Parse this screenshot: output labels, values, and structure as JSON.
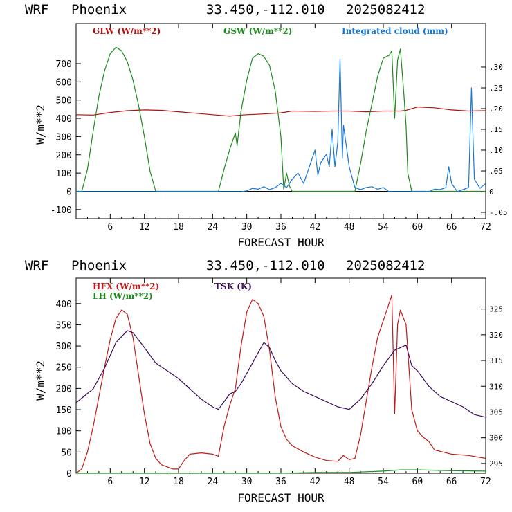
{
  "chart_data": [
    {
      "type": "line",
      "header": {
        "model": "WRF",
        "location": "Phoenix",
        "coords": "33.450,-112.010",
        "init": "2025082412"
      },
      "xlabel": "FORECAST HOUR",
      "ylabel": "W/m**2",
      "xlim": [
        0,
        72
      ],
      "ylim": [
        -150,
        920
      ],
      "y2lim": [
        -0.065,
        0.405
      ],
      "xticks": [
        "6",
        "12",
        "18",
        "24",
        "30",
        "36",
        "42",
        "48",
        "54",
        "60",
        "66",
        "72"
      ],
      "yticks": [
        "-100",
        "0",
        "100",
        "200",
        "300",
        "400",
        "500",
        "600",
        "700"
      ],
      "y2ticks": [
        "-.05",
        "0",
        ".05",
        ".10",
        ".15",
        ".20",
        ".25",
        ".30"
      ],
      "zero_line": true,
      "series": [
        {
          "name": "GLW (W/m**2)",
          "color": "#b01010",
          "axis": "left",
          "points": [
            [
              0,
              420
            ],
            [
              3,
              418
            ],
            [
              6,
              432
            ],
            [
              9,
              442
            ],
            [
              12,
              446
            ],
            [
              15,
              444
            ],
            [
              18,
              436
            ],
            [
              21,
              428
            ],
            [
              24,
              420
            ],
            [
              27,
              412
            ],
            [
              29,
              418
            ],
            [
              30,
              420
            ],
            [
              33,
              424
            ],
            [
              36,
              430
            ],
            [
              38,
              440
            ],
            [
              42,
              438
            ],
            [
              45,
              440
            ],
            [
              48,
              440
            ],
            [
              51,
              436
            ],
            [
              54,
              440
            ],
            [
              57,
              440
            ],
            [
              58,
              444
            ],
            [
              60,
              462
            ],
            [
              63,
              458
            ],
            [
              66,
              446
            ],
            [
              69,
              440
            ],
            [
              72,
              442
            ]
          ]
        },
        {
          "name": "GSW (W/m**2)",
          "color": "#1e8a1e",
          "axis": "left",
          "points": [
            [
              0,
              0
            ],
            [
              1,
              0
            ],
            [
              2,
              120
            ],
            [
              3,
              330
            ],
            [
              4,
              520
            ],
            [
              5,
              660
            ],
            [
              6,
              755
            ],
            [
              7,
              790
            ],
            [
              8,
              770
            ],
            [
              9,
              710
            ],
            [
              10,
              610
            ],
            [
              11,
              470
            ],
            [
              12,
              300
            ],
            [
              13,
              110
            ],
            [
              14,
              0
            ],
            [
              25,
              0
            ],
            [
              26,
              120
            ],
            [
              27,
              230
            ],
            [
              28,
              320
            ],
            [
              28.3,
              250
            ],
            [
              29,
              440
            ],
            [
              30,
              610
            ],
            [
              31,
              730
            ],
            [
              32,
              755
            ],
            [
              33,
              740
            ],
            [
              34,
              690
            ],
            [
              35,
              550
            ],
            [
              36,
              300
            ],
            [
              36.5,
              10
            ],
            [
              37,
              100
            ],
            [
              37.5,
              30
            ],
            [
              38,
              0
            ],
            [
              49,
              0
            ],
            [
              50,
              150
            ],
            [
              51,
              330
            ],
            [
              52,
              480
            ],
            [
              53,
              630
            ],
            [
              54,
              730
            ],
            [
              55,
              745
            ],
            [
              55.5,
              770
            ],
            [
              56,
              400
            ],
            [
              56.5,
              720
            ],
            [
              57,
              780
            ],
            [
              57.6,
              540
            ],
            [
              58,
              360
            ],
            [
              58.3,
              100
            ],
            [
              59,
              0
            ],
            [
              72,
              0
            ]
          ]
        },
        {
          "name": "Integrated cloud (mm)",
          "color": "#1878d8",
          "axis": "right",
          "points": [
            [
              0,
              0
            ],
            [
              29,
              0
            ],
            [
              30,
              0.002
            ],
            [
              31,
              0.008
            ],
            [
              32,
              0.006
            ],
            [
              33,
              0.012
            ],
            [
              34,
              0.005
            ],
            [
              35,
              0.01
            ],
            [
              36,
              0.02
            ],
            [
              37,
              0.01
            ],
            [
              38,
              0.03
            ],
            [
              39,
              0.045
            ],
            [
              40,
              0.02
            ],
            [
              41,
              0.06
            ],
            [
              42,
              0.1
            ],
            [
              42.5,
              0.04
            ],
            [
              43,
              0.07
            ],
            [
              44,
              0.09
            ],
            [
              44.5,
              0.06
            ],
            [
              45,
              0.15
            ],
            [
              45.5,
              0.06
            ],
            [
              46,
              0.12
            ],
            [
              46.4,
              0.32
            ],
            [
              46.8,
              0.08
            ],
            [
              47,
              0.16
            ],
            [
              48,
              0.06
            ],
            [
              49,
              0.01
            ],
            [
              50,
              0.005
            ],
            [
              51,
              0.01
            ],
            [
              52,
              0.012
            ],
            [
              53,
              0.006
            ],
            [
              54,
              0.01
            ],
            [
              55,
              0
            ],
            [
              62,
              0
            ],
            [
              63,
              0.006
            ],
            [
              64,
              0.005
            ],
            [
              65,
              0.01
            ],
            [
              65.5,
              0.06
            ],
            [
              66,
              0.02
            ],
            [
              67,
              0.0
            ],
            [
              68,
              0.005
            ],
            [
              69,
              0.01
            ],
            [
              69.5,
              0.25
            ],
            [
              70,
              0.03
            ],
            [
              71,
              0.008
            ],
            [
              72,
              0.02
            ]
          ]
        }
      ]
    },
    {
      "type": "line",
      "header": {
        "model": "WRF",
        "location": "Phoenix",
        "coords": "33.450,-112.010",
        "init": "2025082412"
      },
      "xlabel": "FORECAST HOUR",
      "ylabel": "W/m**2",
      "xlim": [
        0,
        72
      ],
      "ylim": [
        0,
        460
      ],
      "y2lim": [
        293.1,
        331
      ],
      "xticks": [
        "6",
        "12",
        "18",
        "24",
        "30",
        "36",
        "42",
        "48",
        "54",
        "60",
        "66",
        "72"
      ],
      "yticks": [
        "0",
        "50",
        "100",
        "150",
        "200",
        "250",
        "300",
        "350",
        "400"
      ],
      "y2ticks": [
        "295",
        "300",
        "305",
        "310",
        "315",
        "320",
        "325"
      ],
      "zero_line": false,
      "series": [
        {
          "name": "HFX (W/m**2)",
          "color": "#c01a1a",
          "axis": "left",
          "points": [
            [
              0,
              0
            ],
            [
              1,
              10
            ],
            [
              2,
              50
            ],
            [
              3,
              110
            ],
            [
              4,
              180
            ],
            [
              5,
              250
            ],
            [
              6,
              315
            ],
            [
              7,
              365
            ],
            [
              8,
              385
            ],
            [
              9,
              375
            ],
            [
              10,
              320
            ],
            [
              11,
              230
            ],
            [
              12,
              140
            ],
            [
              13,
              70
            ],
            [
              14,
              35
            ],
            [
              15,
              20
            ],
            [
              17,
              10
            ],
            [
              18,
              10
            ],
            [
              19,
              30
            ],
            [
              20,
              45
            ],
            [
              22,
              48
            ],
            [
              24,
              45
            ],
            [
              25,
              40
            ],
            [
              26,
              110
            ],
            [
              27,
              160
            ],
            [
              28,
              200
            ],
            [
              29,
              300
            ],
            [
              30,
              380
            ],
            [
              31,
              410
            ],
            [
              32,
              400
            ],
            [
              33,
              370
            ],
            [
              34,
              290
            ],
            [
              35,
              180
            ],
            [
              36,
              110
            ],
            [
              37,
              80
            ],
            [
              38,
              65
            ],
            [
              40,
              50
            ],
            [
              42,
              38
            ],
            [
              44,
              30
            ],
            [
              46,
              28
            ],
            [
              47,
              42
            ],
            [
              48,
              32
            ],
            [
              49,
              35
            ],
            [
              50,
              90
            ],
            [
              51,
              170
            ],
            [
              52,
              250
            ],
            [
              53,
              320
            ],
            [
              54,
              360
            ],
            [
              55,
              400
            ],
            [
              55.5,
              420
            ],
            [
              56,
              140
            ],
            [
              56.5,
              350
            ],
            [
              57,
              385
            ],
            [
              58,
              350
            ],
            [
              59,
              150
            ],
            [
              60,
              100
            ],
            [
              61,
              85
            ],
            [
              62,
              75
            ],
            [
              63,
              55
            ],
            [
              66,
              45
            ],
            [
              69,
              42
            ],
            [
              72,
              35
            ]
          ]
        },
        {
          "name": "LH  (W/m**2)",
          "color": "#1e8a1e",
          "axis": "left",
          "points": [
            [
              0,
              0
            ],
            [
              36,
              0
            ],
            [
              42,
              2
            ],
            [
              48,
              2
            ],
            [
              54,
              5
            ],
            [
              57,
              8
            ],
            [
              60,
              8
            ],
            [
              66,
              6
            ],
            [
              72,
              5
            ]
          ]
        },
        {
          "name": "TSK (K)",
          "color": "#3a0a5a",
          "axis": "right",
          "points": [
            [
              0,
              306.8
            ],
            [
              3,
              309.5
            ],
            [
              5,
              313.5
            ],
            [
              7,
              318.5
            ],
            [
              9,
              320.8
            ],
            [
              10,
              320.4
            ],
            [
              12,
              317.5
            ],
            [
              14,
              314.5
            ],
            [
              16,
              313
            ],
            [
              18,
              311.5
            ],
            [
              20,
              309.5
            ],
            [
              22,
              307.5
            ],
            [
              24,
              306
            ],
            [
              25,
              305.5
            ],
            [
              26,
              307
            ],
            [
              27,
              308.5
            ],
            [
              28,
              309
            ],
            [
              29,
              310.5
            ],
            [
              30,
              312.5
            ],
            [
              32,
              316.5
            ],
            [
              33,
              318.5
            ],
            [
              34,
              317.5
            ],
            [
              35,
              315
            ],
            [
              36,
              313
            ],
            [
              38,
              310.5
            ],
            [
              40,
              309
            ],
            [
              42,
              308
            ],
            [
              44,
              307
            ],
            [
              46,
              306
            ],
            [
              48,
              305.5
            ],
            [
              50,
              307.5
            ],
            [
              52,
              310.5
            ],
            [
              54,
              314
            ],
            [
              56,
              317
            ],
            [
              58,
              318
            ],
            [
              59,
              314
            ],
            [
              60,
              313
            ],
            [
              62,
              310
            ],
            [
              64,
              308
            ],
            [
              66,
              307
            ],
            [
              68,
              306
            ],
            [
              70,
              304.5
            ],
            [
              72,
              304
            ]
          ]
        }
      ]
    }
  ]
}
